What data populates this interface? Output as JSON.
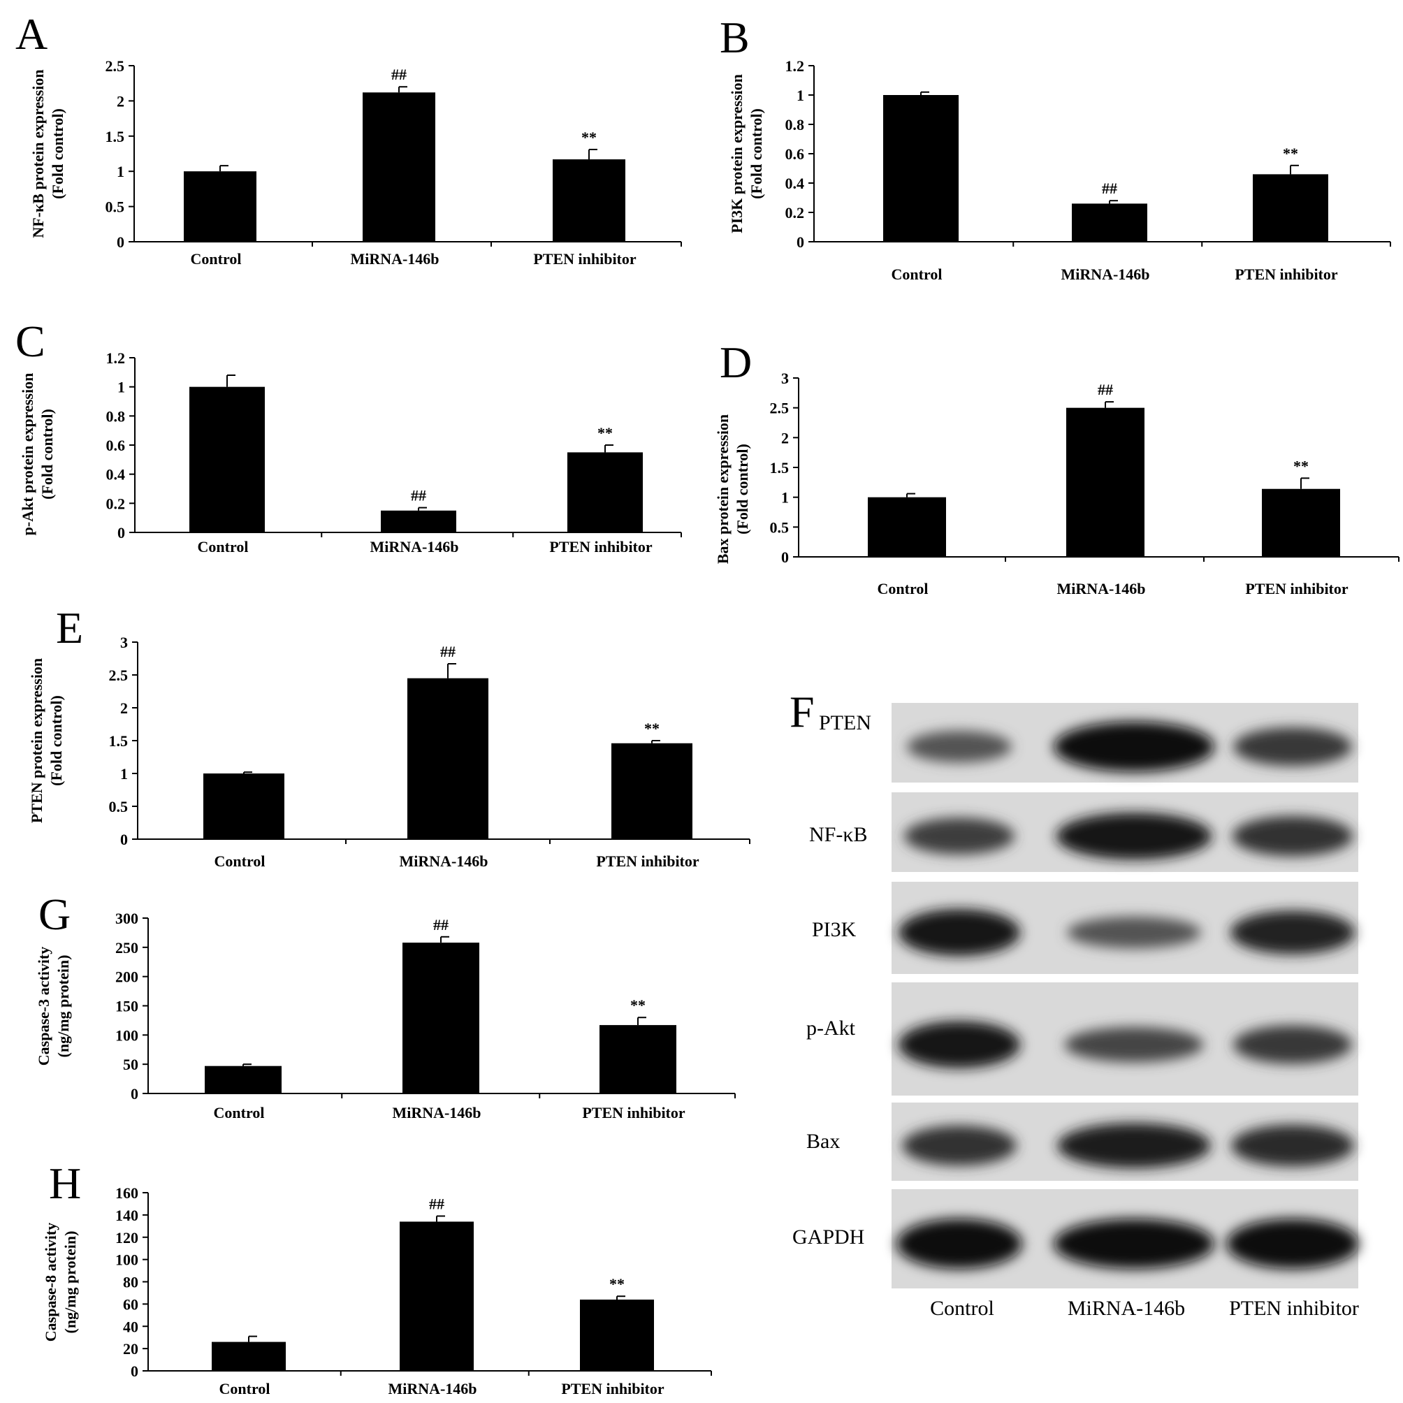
{
  "chart_data": [
    {
      "panel": "A",
      "type": "bar",
      "categories": [
        "Control",
        "MiRNA-146b",
        "PTEN inhibitor"
      ],
      "values": [
        1.0,
        2.12,
        1.17
      ],
      "errors": [
        0.08,
        0.08,
        0.14
      ],
      "annotations": [
        "",
        "##",
        "**"
      ],
      "ylabel": "NF-κB protein expression",
      "ylabel2": "(Fold control)",
      "ylim": [
        0,
        2.5
      ],
      "yticks": [
        0,
        0.5,
        1,
        1.5,
        2,
        2.5
      ]
    },
    {
      "panel": "B",
      "type": "bar",
      "categories": [
        "Control",
        "MiRNA-146b",
        "PTEN inhibitor"
      ],
      "values": [
        1.0,
        0.26,
        0.46
      ],
      "errors": [
        0.02,
        0.02,
        0.06
      ],
      "annotations": [
        "",
        "##",
        "**"
      ],
      "ylabel": "PI3K protein expression",
      "ylabel2": "(Fold control)",
      "ylim": [
        0,
        1.2
      ],
      "yticks": [
        0,
        0.2,
        0.4,
        0.6,
        0.8,
        1,
        1.2
      ]
    },
    {
      "panel": "C",
      "type": "bar",
      "categories": [
        "Control",
        "MiRNA-146b",
        "PTEN inhibitor"
      ],
      "values": [
        1.0,
        0.15,
        0.55
      ],
      "errors": [
        0.08,
        0.02,
        0.05
      ],
      "annotations": [
        "",
        "##",
        "**"
      ],
      "ylabel": "p-Akt protein expression",
      "ylabel2": "(Fold control)",
      "ylim": [
        0,
        1.2
      ],
      "yticks": [
        0,
        0.2,
        0.4,
        0.6,
        0.8,
        1,
        1.2
      ]
    },
    {
      "panel": "D",
      "type": "bar",
      "categories": [
        "Control",
        "MiRNA-146b",
        "PTEN inhibitor"
      ],
      "values": [
        1.0,
        2.5,
        1.14
      ],
      "errors": [
        0.06,
        0.1,
        0.18
      ],
      "annotations": [
        "",
        "##",
        "**"
      ],
      "ylabel": "Bax protein expression",
      "ylabel2": "(Fold control)",
      "ylim": [
        0,
        3
      ],
      "yticks": [
        0,
        0.5,
        1,
        1.5,
        2,
        2.5,
        3
      ]
    },
    {
      "panel": "E",
      "type": "bar",
      "categories": [
        "Control",
        "MiRNA-146b",
        "PTEN inhibitor"
      ],
      "values": [
        1.0,
        2.45,
        1.46
      ],
      "errors": [
        0.02,
        0.22,
        0.04
      ],
      "annotations": [
        "",
        "##",
        "**"
      ],
      "ylabel": "PTEN protein expression",
      "ylabel2": "(Fold control)",
      "ylim": [
        0,
        3
      ],
      "yticks": [
        0,
        0.5,
        1,
        1.5,
        2,
        2.5,
        3
      ]
    },
    {
      "panel": "G",
      "type": "bar",
      "categories": [
        "Control",
        "MiRNA-146b",
        "PTEN inhibitor"
      ],
      "values": [
        47,
        258,
        117
      ],
      "errors": [
        3,
        10,
        13
      ],
      "annotations": [
        "",
        "##",
        "**"
      ],
      "ylabel": "Caspase-3 activity",
      "ylabel2": "(ng/mg protein)",
      "ylim": [
        0,
        300
      ],
      "yticks": [
        0,
        50,
        100,
        150,
        200,
        250,
        300
      ]
    },
    {
      "panel": "H",
      "type": "bar",
      "categories": [
        "Control",
        "MiRNA-146b",
        "PTEN inhibitor"
      ],
      "values": [
        26,
        134,
        64
      ],
      "errors": [
        5,
        5,
        3
      ],
      "annotations": [
        "",
        "##",
        "**"
      ],
      "ylabel": "Caspase-8 activity",
      "ylabel2": "(ng/mg protein)",
      "ylim": [
        0,
        160
      ],
      "yticks": [
        0,
        20,
        40,
        60,
        80,
        100,
        120,
        140,
        160
      ]
    }
  ],
  "blot": {
    "panel": "F",
    "proteins": [
      "PTEN",
      "NF-κB",
      "PI3K",
      "p-Akt",
      "Bax",
      "GAPDH"
    ],
    "lanes": [
      "Control",
      "MiRNA-146b",
      "PTEN inhibitor"
    ],
    "band_intensity": [
      [
        0.45,
        1.0,
        0.65
      ],
      [
        0.6,
        0.9,
        0.7
      ],
      [
        0.9,
        0.45,
        0.8
      ],
      [
        0.9,
        0.55,
        0.65
      ],
      [
        0.7,
        0.85,
        0.75
      ],
      [
        1.0,
        1.0,
        1.0
      ]
    ]
  }
}
